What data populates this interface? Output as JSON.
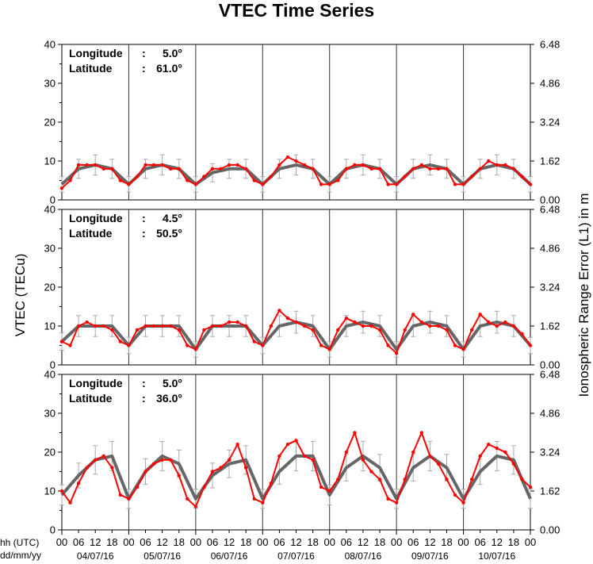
{
  "chart_data": {
    "type": "line",
    "title": "VTEC Time Series",
    "ylabel_left": "VTEC (TECu)",
    "ylabel_right": "Ionospheric Range Error (L1) in m",
    "x_axis_label_line1": "hh (UTC)",
    "x_axis_label_line2": "dd/mm/yy",
    "hour_ticks": [
      "00",
      "06",
      "12",
      "18"
    ],
    "hour_tick_end": "00",
    "dates": [
      "04/07/16",
      "05/07/16",
      "06/07/16",
      "07/07/16",
      "08/07/16",
      "09/07/16",
      "10/07/16"
    ],
    "xlim_hours": [
      0,
      168
    ],
    "ylim": [
      0,
      40
    ],
    "y_ticks": [
      "0",
      "10",
      "20",
      "30",
      "40"
    ],
    "right_ticks": [
      "0.00",
      "1.62",
      "3.24",
      "4.86",
      "6.48"
    ],
    "series_colors": {
      "measured": "#ff0000",
      "reference": "#666666",
      "error_bars": "#aaaaaa"
    },
    "panels": [
      {
        "longitude_label": "Longitude",
        "longitude_value": "5.0°",
        "latitude_label": "Latitude",
        "latitude_value": "61.0°",
        "series": [
          {
            "role": "measured",
            "x": [
              0,
              3,
              6,
              9,
              12,
              15,
              18,
              21,
              24,
              27,
              30,
              33,
              36,
              39,
              42,
              45,
              48,
              51,
              54,
              57,
              60,
              63,
              66,
              69,
              72,
              75,
              78,
              81,
              84,
              87,
              90,
              93,
              96,
              99,
              102,
              105,
              108,
              111,
              114,
              117,
              120,
              123,
              126,
              129,
              132,
              135,
              138,
              141,
              144,
              147,
              150,
              153,
              156,
              159,
              162,
              165,
              168
            ],
            "y": [
              3,
              5,
              9,
              9,
              9,
              8,
              8,
              5,
              4,
              6,
              9,
              9,
              9,
              8,
              8,
              5,
              4,
              6,
              8,
              8,
              9,
              9,
              8,
              5,
              4,
              6,
              9,
              11,
              10,
              9,
              8,
              4,
              4,
              5,
              8,
              9,
              9,
              8,
              8,
              4,
              4,
              6,
              8,
              9,
              8,
              8,
              8,
              4,
              4,
              6,
              8,
              10,
              9,
              9,
              8,
              6,
              4
            ]
          },
          {
            "role": "reference",
            "x": [
              0,
              6,
              12,
              18,
              24,
              30,
              36,
              42,
              48,
              54,
              60,
              66,
              72,
              78,
              84,
              90,
              96,
              102,
              108,
              114,
              120,
              126,
              132,
              138,
              144,
              150,
              156,
              162,
              168
            ],
            "y": [
              4,
              8,
              9,
              8,
              4,
              8,
              9,
              8,
              4,
              7,
              8,
              8,
              4,
              8,
              9,
              8,
              4,
              8,
              9,
              8,
              4,
              8,
              9,
              8,
              4,
              8,
              9,
              8,
              4
            ]
          }
        ]
      },
      {
        "longitude_label": "Longitude",
        "longitude_value": "4.5°",
        "latitude_label": "Latitude",
        "latitude_value": "50.5°",
        "series": [
          {
            "role": "measured",
            "x": [
              0,
              3,
              6,
              9,
              12,
              15,
              18,
              21,
              24,
              27,
              30,
              33,
              36,
              39,
              42,
              45,
              48,
              51,
              54,
              57,
              60,
              63,
              66,
              69,
              72,
              75,
              78,
              81,
              84,
              87,
              90,
              93,
              96,
              99,
              102,
              105,
              108,
              111,
              114,
              117,
              120,
              123,
              126,
              129,
              132,
              135,
              138,
              141,
              144,
              147,
              150,
              153,
              156,
              159,
              162,
              165,
              168
            ],
            "y": [
              6,
              5,
              10,
              11,
              10,
              10,
              9,
              6,
              5,
              9,
              10,
              10,
              10,
              10,
              9,
              5,
              4,
              9,
              10,
              10,
              11,
              11,
              10,
              6,
              5,
              10,
              14,
              12,
              11,
              10,
              9,
              5,
              4,
              9,
              12,
              11,
              10,
              10,
              9,
              5,
              3,
              9,
              13,
              11,
              10,
              10,
              9,
              5,
              4,
              9,
              13,
              11,
              10,
              11,
              10,
              8,
              5
            ]
          },
          {
            "role": "reference",
            "x": [
              0,
              6,
              12,
              18,
              24,
              30,
              36,
              42,
              48,
              54,
              60,
              66,
              72,
              78,
              84,
              90,
              96,
              102,
              108,
              114,
              120,
              126,
              132,
              138,
              144,
              150,
              156,
              162,
              168
            ],
            "y": [
              6,
              10,
              10,
              10,
              5,
              10,
              10,
              10,
              4,
              10,
              10,
              10,
              5,
              10,
              11,
              10,
              4,
              10,
              11,
              10,
              4,
              10,
              11,
              10,
              4,
              10,
              11,
              10,
              5
            ]
          }
        ]
      },
      {
        "longitude_label": "Longitude",
        "longitude_value": "5.0°",
        "latitude_label": "Latitude",
        "latitude_value": "36.0°",
        "series": [
          {
            "role": "measured",
            "x": [
              0,
              3,
              6,
              9,
              12,
              15,
              18,
              21,
              24,
              27,
              30,
              33,
              36,
              39,
              42,
              45,
              48,
              51,
              54,
              57,
              60,
              63,
              66,
              69,
              72,
              75,
              78,
              81,
              84,
              87,
              90,
              93,
              96,
              99,
              102,
              105,
              108,
              111,
              114,
              117,
              120,
              123,
              126,
              129,
              132,
              135,
              138,
              141,
              144,
              147,
              150,
              153,
              156,
              159,
              162,
              165,
              168
            ],
            "y": [
              10,
              7,
              12,
              16,
              18,
              19,
              16,
              9,
              8,
              11,
              15,
              17,
              18,
              18,
              14,
              8,
              6,
              11,
              15,
              16,
              18,
              22,
              16,
              8,
              7,
              12,
              19,
              22,
              23,
              19,
              18,
              11,
              10,
              13,
              20,
              25,
              18,
              15,
              13,
              8,
              7,
              13,
              20,
              25,
              19,
              17,
              13,
              9,
              7,
              13,
              19,
              22,
              21,
              20,
              17,
              13,
              11
            ]
          },
          {
            "role": "reference",
            "x": [
              0,
              6,
              12,
              18,
              24,
              30,
              36,
              42,
              48,
              54,
              60,
              66,
              72,
              78,
              84,
              90,
              96,
              102,
              108,
              114,
              120,
              126,
              132,
              138,
              144,
              150,
              156,
              162,
              168
            ],
            "y": [
              9,
              14,
              18,
              19,
              8,
              15,
              19,
              17,
              8,
              14,
              17,
              18,
              8,
              15,
              19,
              19,
              9,
              16,
              19,
              16,
              8,
              16,
              19,
              16,
              8,
              15,
              19,
              18,
              8
            ]
          }
        ]
      }
    ]
  }
}
